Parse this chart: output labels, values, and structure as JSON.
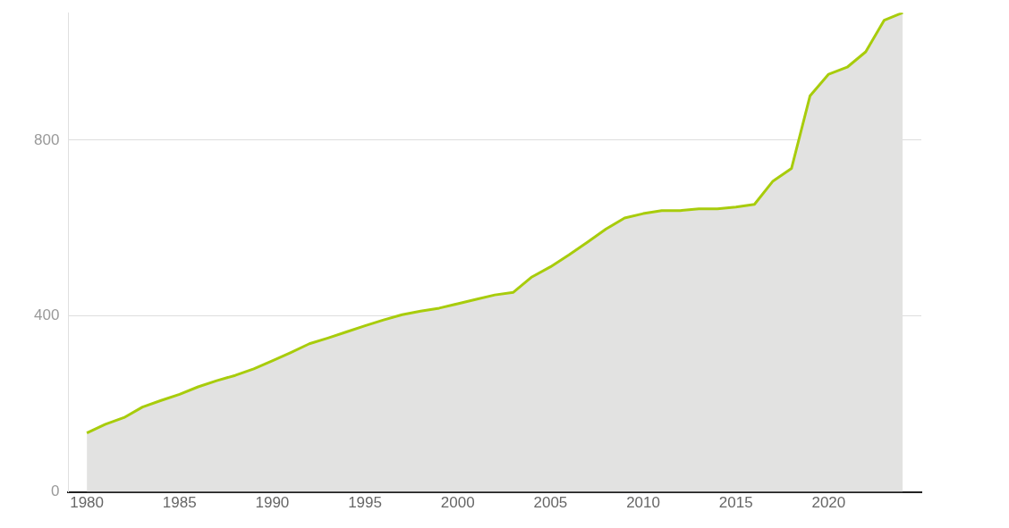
{
  "chart_data": {
    "type": "area",
    "x": [
      1980,
      1981,
      1982,
      1983,
      1984,
      1985,
      1986,
      1987,
      1988,
      1989,
      1990,
      1991,
      1992,
      1993,
      1994,
      1995,
      1996,
      1997,
      1998,
      1999,
      2000,
      2001,
      2002,
      2003,
      2004,
      2005,
      2006,
      2007,
      2008,
      2009,
      2010,
      2011,
      2012,
      2013,
      2014,
      2015,
      2016,
      2017,
      2018,
      2019,
      2020,
      2021,
      2022,
      2023,
      2024
    ],
    "series": [
      {
        "color": "#a8cc0c",
        "values": [
          134,
          154,
          169,
          193,
          208,
          222,
          239,
          253,
          265,
          280,
          298,
          317,
          337,
          350,
          364,
          378,
          391,
          403,
          411,
          418,
          428,
          438,
          448,
          454,
          489,
          512,
          539,
          568,
          598,
          623,
          633,
          640,
          640,
          644,
          644,
          648,
          654,
          707,
          736,
          901,
          950,
          966,
          1001,
          1073,
          1090
        ]
      }
    ],
    "xlim": [
      1979,
      2025
    ],
    "xticks": [
      1980,
      1985,
      1990,
      1995,
      2000,
      2005,
      2010,
      2015,
      2020
    ],
    "ylim": [
      0,
      1090
    ],
    "yticks": [
      0,
      400,
      800
    ],
    "grid": "y",
    "legend": false
  }
}
